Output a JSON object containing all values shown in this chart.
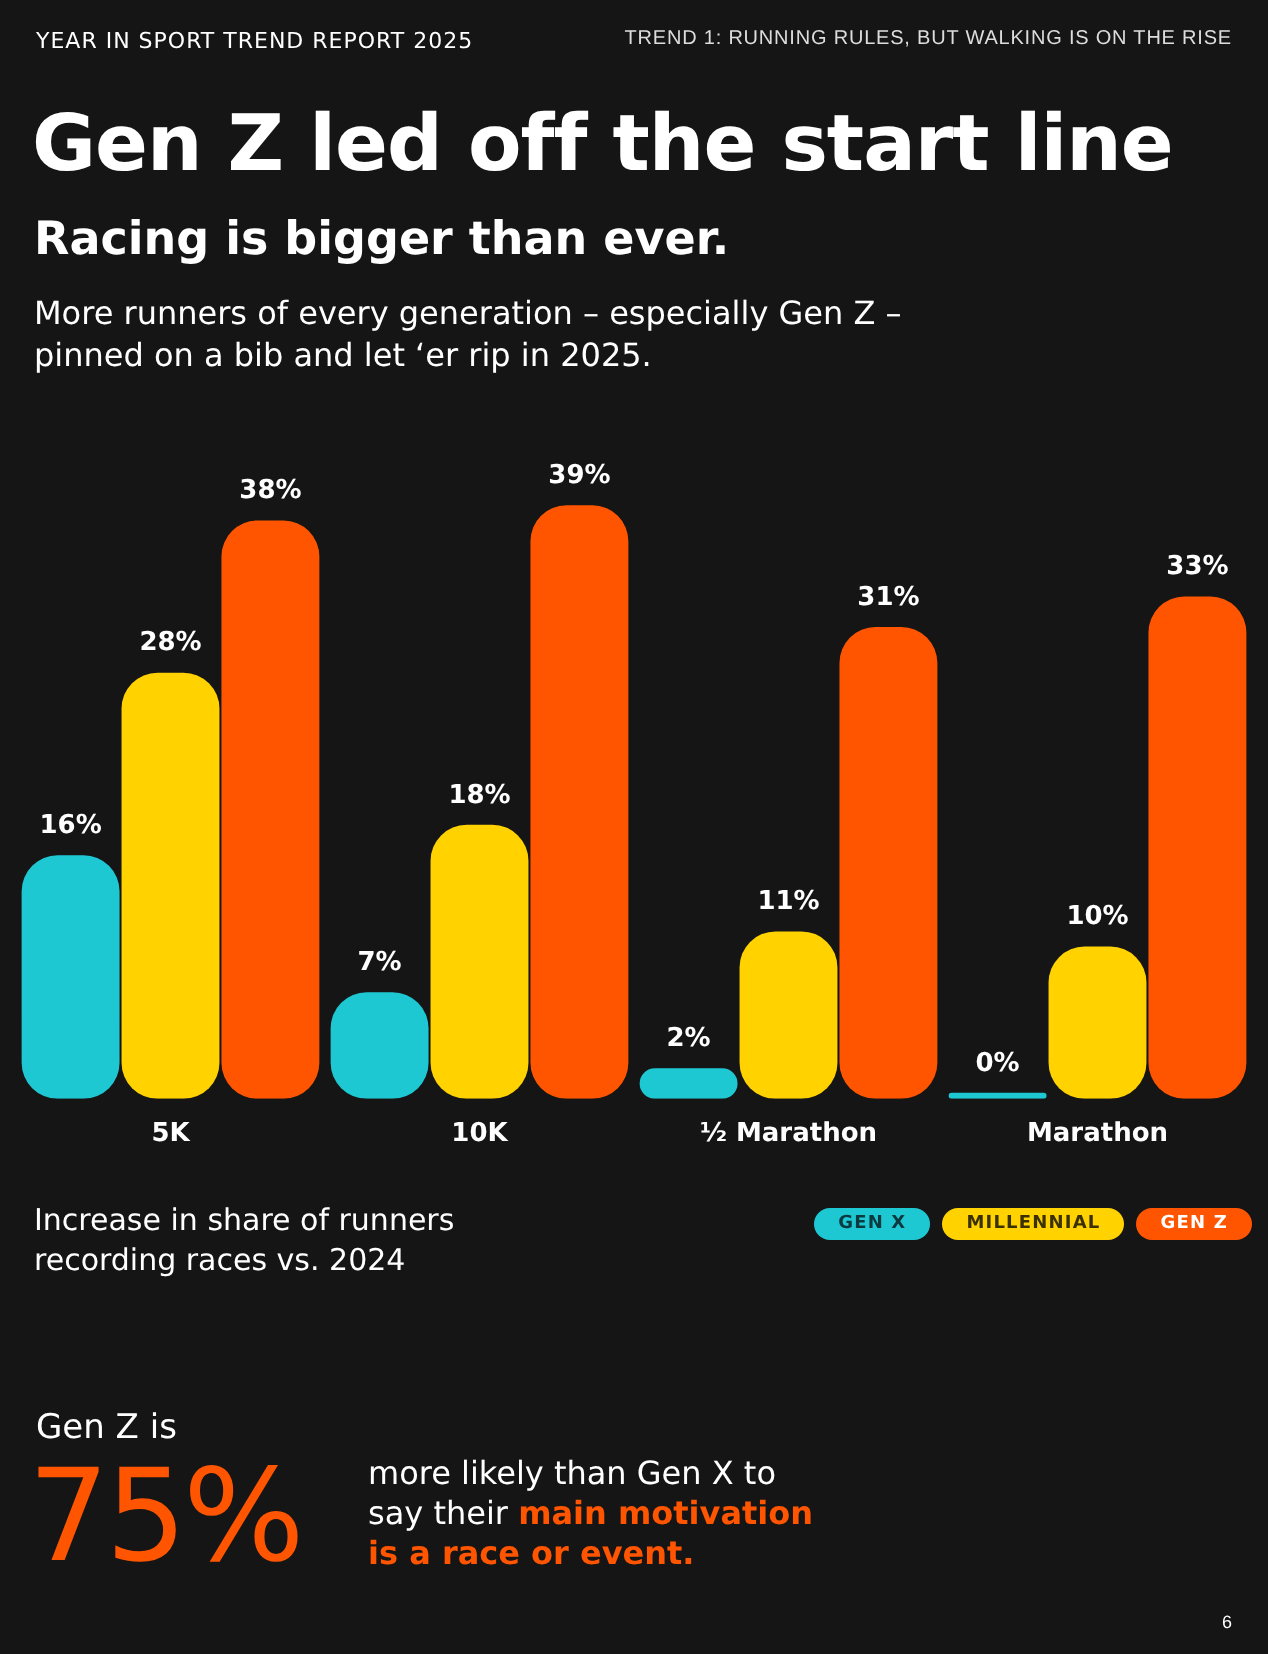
{
  "chart_data": {
    "type": "bar",
    "title": "Gen Z led off the start line",
    "subtitle": "Racing is bigger than ever.",
    "annotations": [
      "YEAR IN SPORT TREND REPORT 2025",
      "TREND 1: RUNNING RULES, BUT WALKING IS ON THE RISE",
      "More runners of every generation – especially Gen Z – pinned on a bib and let ‘er rip in 2025.",
      "Increase in share of runners recording races vs. 2024",
      "Gen Z is",
      "75%",
      "more likely than Gen X to say their",
      "main motivation is a race or event.",
      "6"
    ],
    "categories": [
      "5K",
      "10K",
      "½ Marathon",
      "Marathon"
    ],
    "series": [
      {
        "name": "GEN X",
        "color": "#1ec8d2",
        "values": [
          16,
          7,
          2,
          0
        ],
        "value_labels": [
          "16%",
          "7%",
          "2%",
          "0%"
        ]
      },
      {
        "name": "MILLENNIAL",
        "color": "#ffd200",
        "values": [
          28,
          18,
          11,
          10
        ],
        "value_labels": [
          "28%",
          "18%",
          "11%",
          "10%"
        ]
      },
      {
        "name": "GEN Z",
        "color": "#ff5500",
        "values": [
          38,
          39,
          31,
          33
        ],
        "value_labels": [
          "38%",
          "39%",
          "31%",
          "33%"
        ]
      }
    ],
    "legend": "bottom right",
    "grid": false
  }
}
